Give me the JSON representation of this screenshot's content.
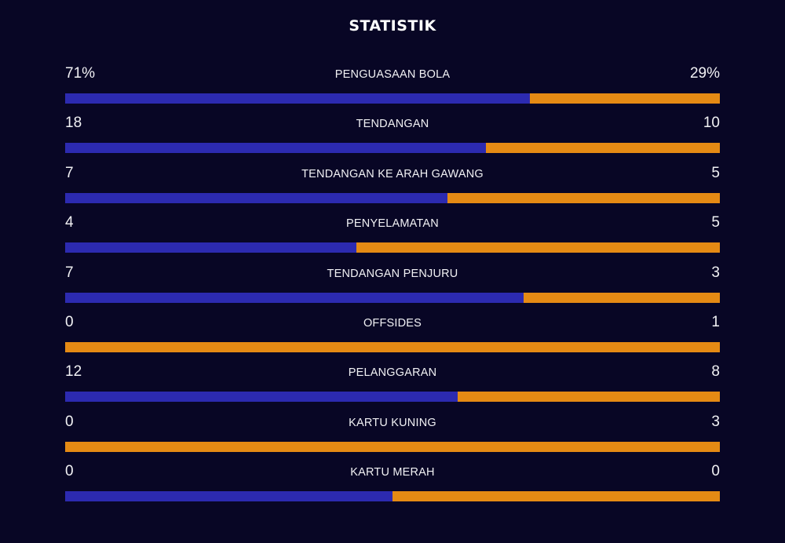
{
  "title": "STATISTIK",
  "colors": {
    "background": "#080625",
    "home": "#2c2ab0",
    "away": "#e58a14"
  },
  "stats": [
    {
      "label": "PENGUASAAN BOLA",
      "home_text": "71%",
      "away_text": "29%",
      "home": 71,
      "away": 29
    },
    {
      "label": "TENDANGAN",
      "home_text": "18",
      "away_text": "10",
      "home": 18,
      "away": 10
    },
    {
      "label": "TENDANGAN KE ARAH GAWANG",
      "home_text": "7",
      "away_text": "5",
      "home": 7,
      "away": 5
    },
    {
      "label": "PENYELAMATAN",
      "home_text": "4",
      "away_text": "5",
      "home": 4,
      "away": 5
    },
    {
      "label": "TENDANGAN PENJURU",
      "home_text": "7",
      "away_text": "3",
      "home": 7,
      "away": 3
    },
    {
      "label": "OFFSIDES",
      "home_text": "0",
      "away_text": "1",
      "home": 0,
      "away": 1
    },
    {
      "label": "PELANGGARAN",
      "home_text": "12",
      "away_text": "8",
      "home": 12,
      "away": 8
    },
    {
      "label": "KARTU KUNING",
      "home_text": "0",
      "away_text": "3",
      "home": 0,
      "away": 3
    },
    {
      "label": "KARTU MERAH",
      "home_text": "0",
      "away_text": "0",
      "home": 0,
      "away": 0
    }
  ]
}
